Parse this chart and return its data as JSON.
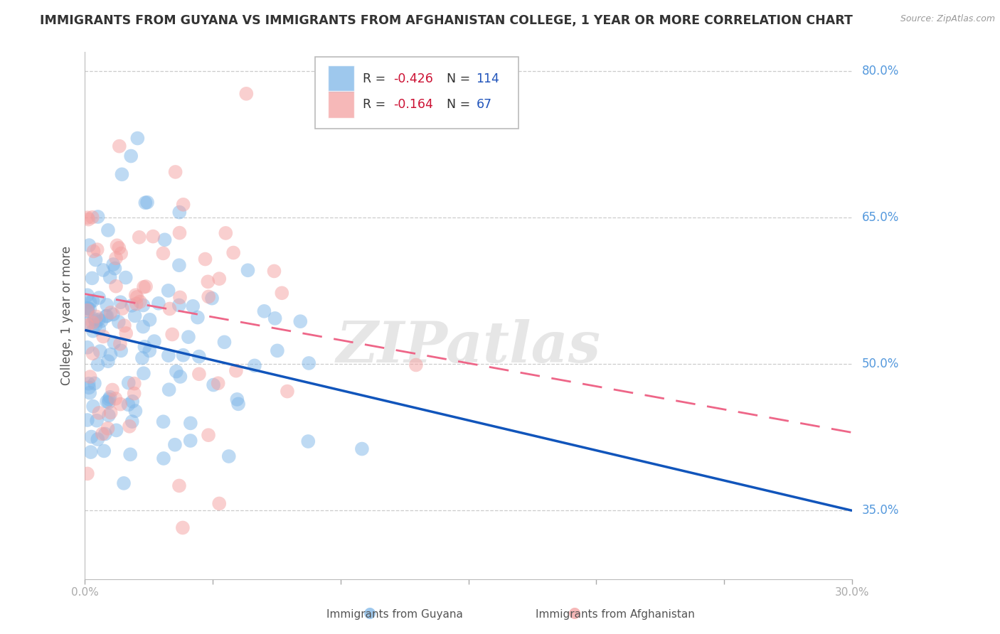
{
  "title": "IMMIGRANTS FROM GUYANA VS IMMIGRANTS FROM AFGHANISTAN COLLEGE, 1 YEAR OR MORE CORRELATION CHART",
  "source": "Source: ZipAtlas.com",
  "ylabel": "College, 1 year or more",
  "xlim": [
    0.0,
    0.3
  ],
  "ylim": [
    0.28,
    0.82
  ],
  "xticks": [
    0.0,
    0.05,
    0.1,
    0.15,
    0.2,
    0.25,
    0.3
  ],
  "xticklabels": [
    "0.0%",
    "",
    "",
    "",
    "",
    "",
    "30.0%"
  ],
  "ytick_right_labels": [
    "80.0%",
    "65.0%",
    "50.0%",
    "35.0%"
  ],
  "ytick_right_values": [
    0.8,
    0.65,
    0.5,
    0.35
  ],
  "guyana_color": "#7EB6E8",
  "afghanistan_color": "#F4A0A0",
  "guyana_line_color": "#1155BB",
  "afghanistan_line_color": "#EE6688",
  "watermark": "ZIPatlas",
  "seed": 42,
  "guyana_n": 114,
  "afghanistan_n": 67,
  "guyana_R": -0.426,
  "afghanistan_R": -0.164,
  "guyana_line_y0": 0.535,
  "guyana_line_y1": 0.35,
  "afghanistan_line_y0": 0.572,
  "afghanistan_line_y1": 0.43,
  "background_color": "#FFFFFF",
  "grid_color": "#CCCCCC",
  "legend_R1": "-0.426",
  "legend_N1": "114",
  "legend_R2": "-0.164",
  "legend_N2": "67"
}
